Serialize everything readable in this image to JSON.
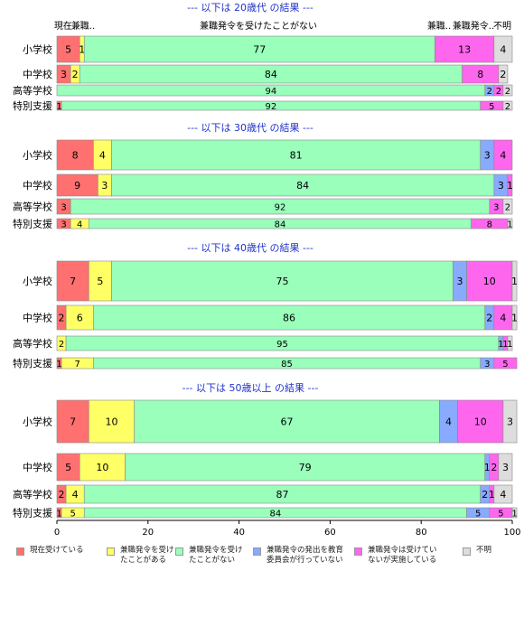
{
  "chart_data": {
    "type": "bar",
    "orientation": "horizontal",
    "stacked": true,
    "xlim": [
      0,
      100
    ],
    "x_ticks": [
      "0",
      "20",
      "40",
      "60",
      "80",
      "100"
    ],
    "top_labels": [
      "現在..",
      "兼職..",
      "兼職発令を受けたことがない",
      "兼職..",
      "兼職発令..",
      "不明"
    ],
    "colors": [
      "#ff7070",
      "#ffff66",
      "#99ffbb",
      "#88aaff",
      "#ff66ee",
      "#dddddd"
    ],
    "legend": [
      {
        "label": "現在受けている"
      },
      {
        "label": "兼職発令を受け\nたことがある"
      },
      {
        "label": "兼職発令を受け\nたことがない"
      },
      {
        "label": "兼職発令の発出を教育\n委員会が行っていない"
      },
      {
        "label": "兼職発令は受けてい\nないが実施している"
      },
      {
        "label": "不明"
      }
    ],
    "groups": [
      {
        "title": "--- 以下は 20歳代 の結果 ---",
        "rows": [
          {
            "category": "小学校",
            "values": [
              5,
              1,
              77,
              0,
              13,
              4
            ],
            "labels": [
              "5",
              "1",
              "77",
              "",
              "13",
              "4"
            ]
          },
          {
            "category": "中学校",
            "values": [
              3,
              2,
              84,
              0,
              8,
              2
            ],
            "labels": [
              "3",
              "2",
              "84",
              "",
              "8",
              "2"
            ]
          },
          {
            "category": "高等学校",
            "values": [
              0,
              0,
              94,
              2,
              2,
              2
            ],
            "labels": [
              "",
              "",
              "94",
              "2",
              "2",
              "2"
            ]
          },
          {
            "category": "特別支援",
            "values": [
              1,
              0,
              92,
              0,
              5,
              2
            ],
            "labels": [
              "1",
              "",
              "92",
              "",
              "5",
              "2"
            ]
          }
        ]
      },
      {
        "title": "--- 以下は 30歳代 の結果 ---",
        "rows": [
          {
            "category": "小学校",
            "values": [
              8,
              4,
              81,
              3,
              4,
              0
            ],
            "labels": [
              "8",
              "4",
              "81",
              "3",
              "4",
              ""
            ]
          },
          {
            "category": "中学校",
            "values": [
              9,
              3,
              84,
              3,
              1,
              0
            ],
            "labels": [
              "9",
              "3",
              "84",
              "3",
              "1",
              ""
            ]
          },
          {
            "category": "高等学校",
            "values": [
              3,
              0,
              92,
              0,
              3,
              2
            ],
            "labels": [
              "3",
              "",
              "92",
              "",
              "3",
              "2"
            ]
          },
          {
            "category": "特別支援",
            "values": [
              3,
              4,
              84,
              0,
              8,
              1
            ],
            "labels": [
              "3",
              "4",
              "84",
              "",
              "8",
              "1"
            ]
          }
        ]
      },
      {
        "title": "--- 以下は 40歳代 の結果 ---",
        "rows": [
          {
            "category": "小学校",
            "values": [
              7,
              5,
              75,
              3,
              10,
              1
            ],
            "labels": [
              "7",
              "5",
              "75",
              "3",
              "10",
              "1"
            ]
          },
          {
            "category": "中学校",
            "values": [
              2,
              6,
              86,
              2,
              4,
              1
            ],
            "labels": [
              "2",
              "6",
              "86",
              "2",
              "4",
              "1"
            ]
          },
          {
            "category": "高等学校",
            "values": [
              0,
              2,
              95,
              1,
              1,
              1
            ],
            "labels": [
              "",
              "2",
              "95",
              "1",
              "1",
              "1"
            ]
          },
          {
            "category": "特別支援",
            "values": [
              1,
              7,
              85,
              3,
              5,
              0
            ],
            "labels": [
              "1",
              "7",
              "85",
              "3",
              "5",
              ""
            ]
          }
        ]
      },
      {
        "title": "--- 以下は 50歳以上 の結果 ---",
        "rows": [
          {
            "category": "小学校",
            "values": [
              7,
              10,
              67,
              4,
              10,
              3
            ],
            "labels": [
              "7",
              "10",
              "67",
              "4",
              "10",
              "3"
            ]
          },
          {
            "category": "中学校",
            "values": [
              5,
              10,
              79,
              1,
              2,
              3
            ],
            "labels": [
              "5",
              "10",
              "79",
              "1",
              "2",
              "3"
            ]
          },
          {
            "category": "高等学校",
            "values": [
              2,
              4,
              87,
              2,
              1,
              4
            ],
            "labels": [
              "2",
              "4",
              "87",
              "2",
              "1",
              "4"
            ]
          },
          {
            "category": "特別支援",
            "values": [
              1,
              5,
              84,
              5,
              5,
              1
            ],
            "labels": [
              "1",
              "5",
              "84",
              "5",
              "5",
              "1"
            ]
          }
        ]
      }
    ]
  }
}
